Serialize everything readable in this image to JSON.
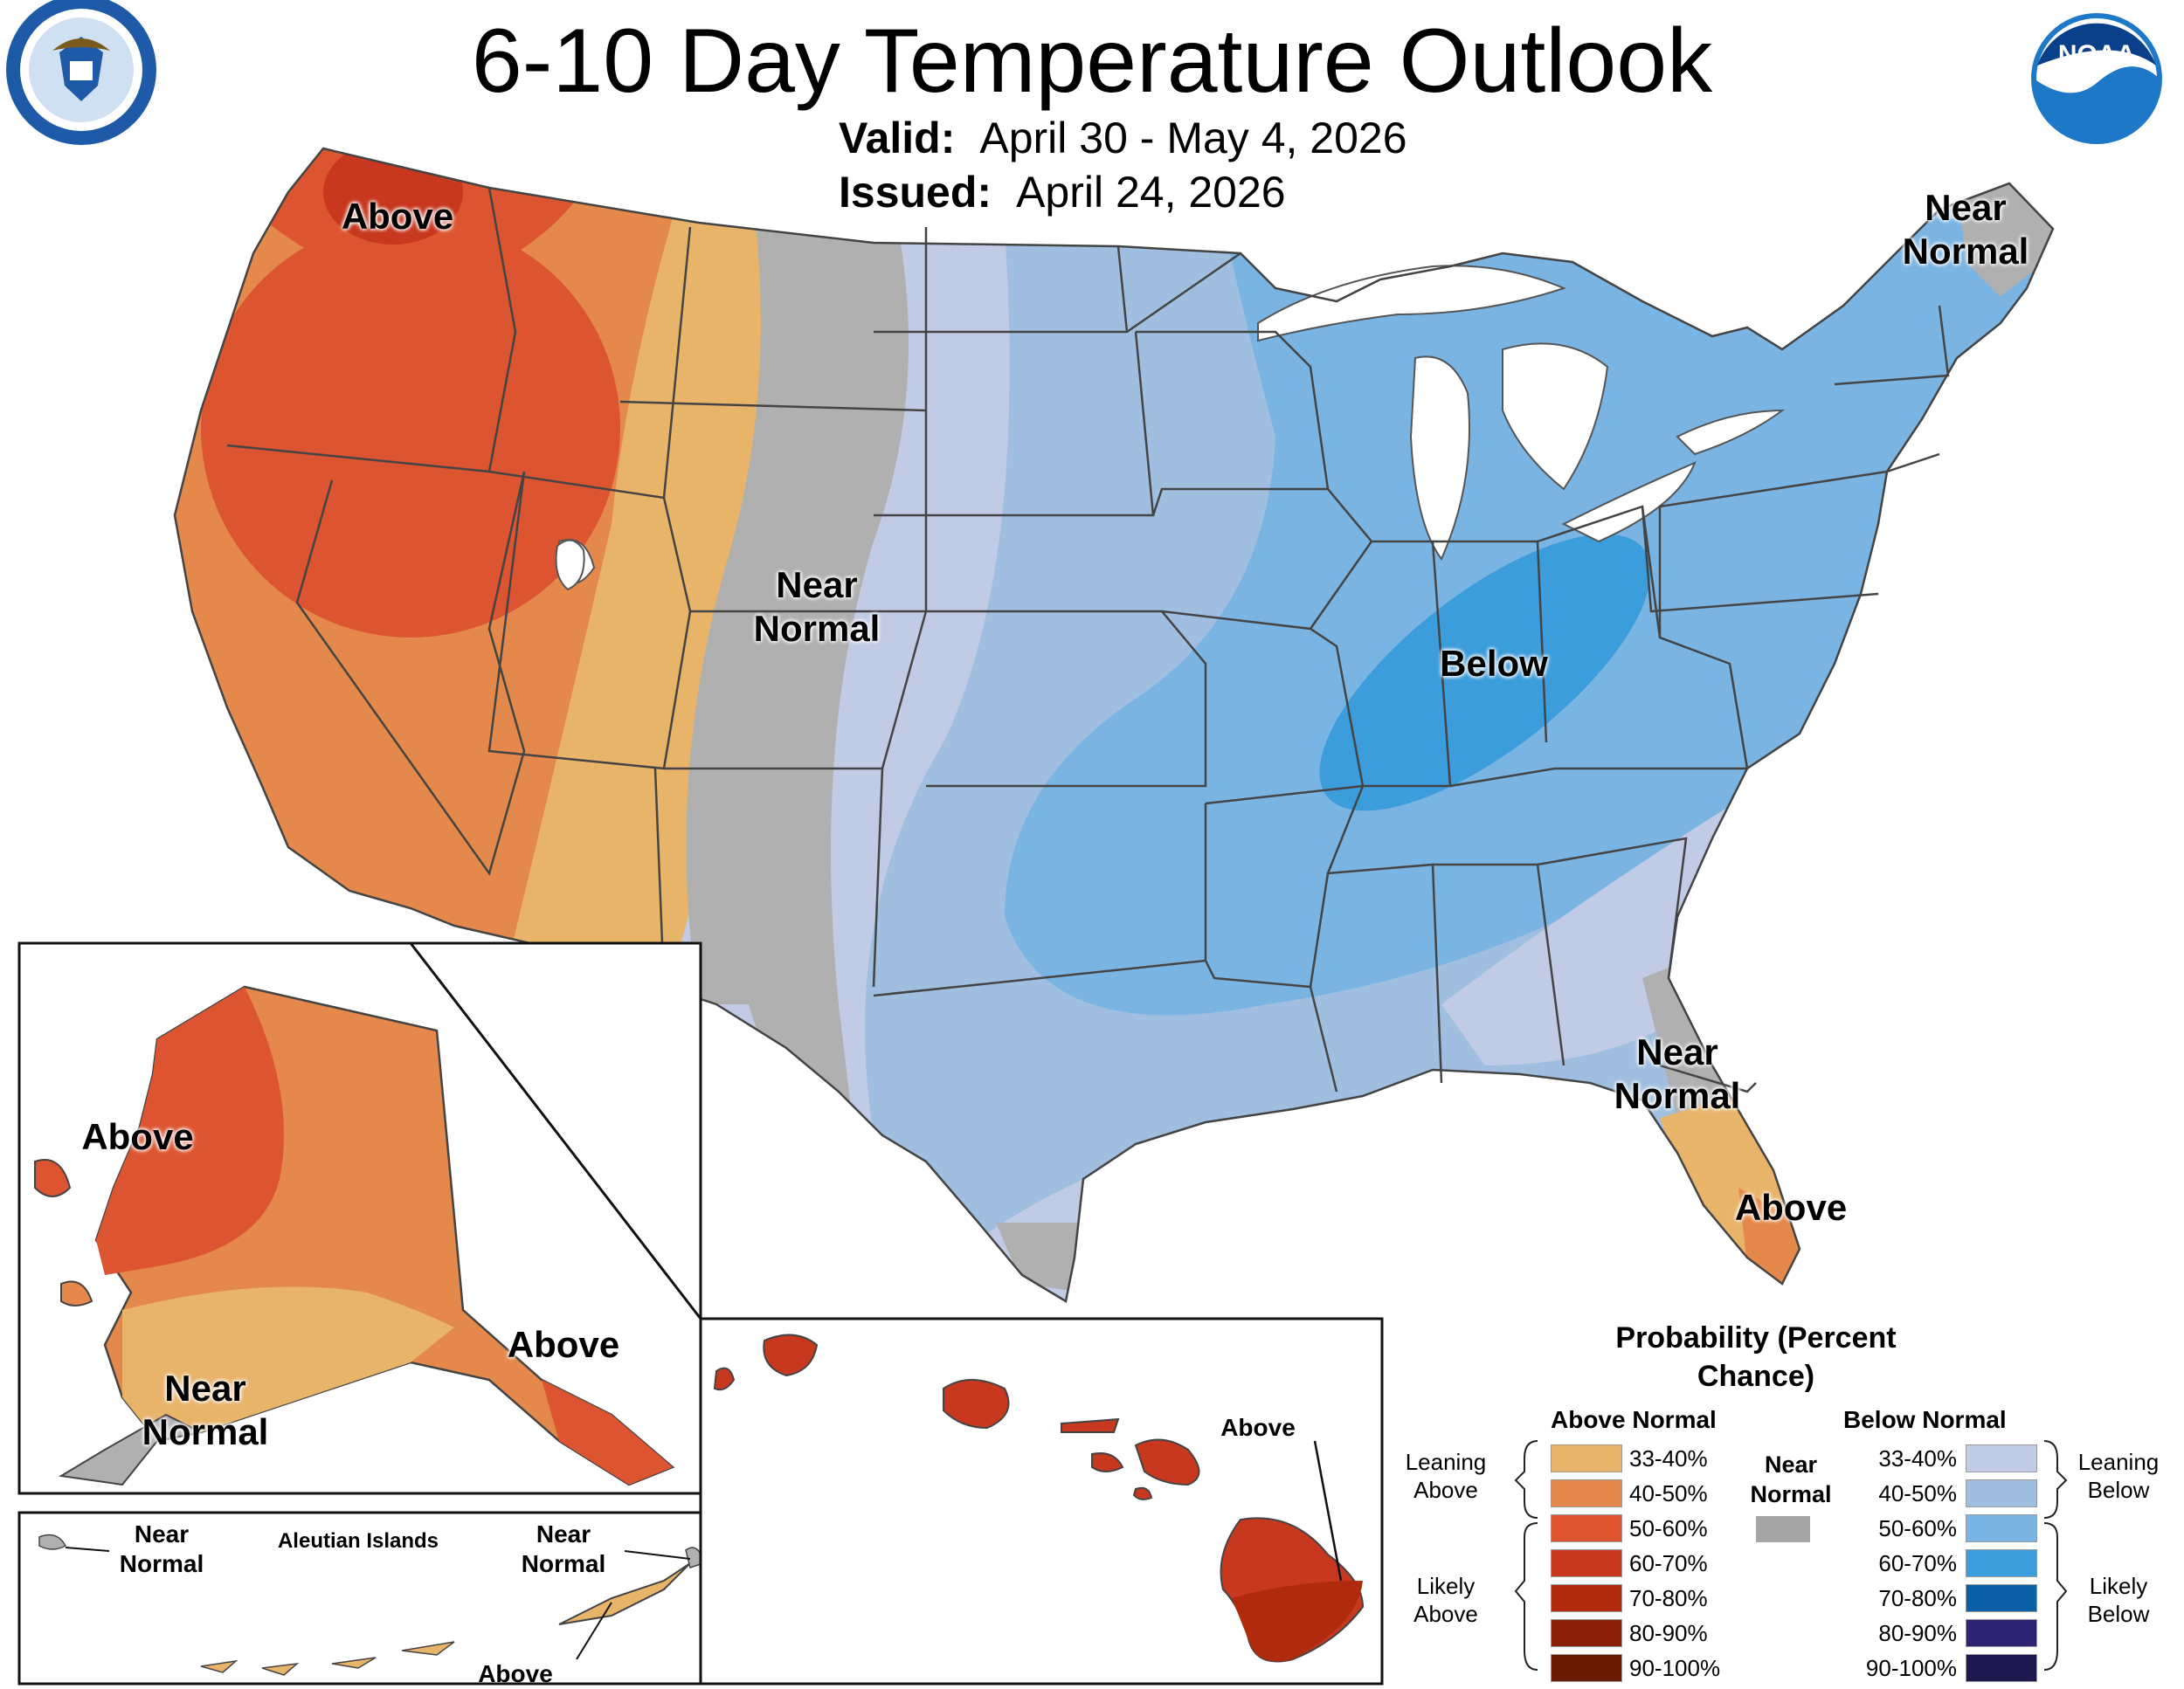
{
  "title": "6-10 Day Temperature Outlook",
  "valid": {
    "label": "Valid:",
    "value": "April 30 - May 4, 2026"
  },
  "issued": {
    "label": "Issued:",
    "value": "April 24, 2026"
  },
  "logos": {
    "left": "DEPARTMENT OF COMMERCE · UNITED STATES OF AMERICA",
    "right": "NOAA"
  },
  "map_labels": {
    "conus_above": "Above",
    "conus_near_normal": "Near Normal",
    "conus_below": "Below",
    "ne_near_normal": "Near Normal",
    "se_near_normal": "Near Normal",
    "fl_above": "Above",
    "ak_above_west": "Above",
    "ak_above_se": "Above",
    "ak_near_normal": "Near Normal",
    "aleutian_title": "Aleutian Islands",
    "aleutian_near_normal_left": "Near Normal",
    "aleutian_near_normal_right": "Near Normal",
    "aleutian_above": "Above",
    "hi_above": "Above"
  },
  "legend": {
    "title": "Probability (Percent Chance)",
    "above_header": "Above Normal",
    "below_header": "Below Normal",
    "near_header": "Near Normal",
    "leaning_above": "Leaning Above",
    "likely_above": "Likely Above",
    "leaning_below": "Leaning Below",
    "likely_below": "Likely Below",
    "near_color": "#a6a6a6",
    "above": [
      {
        "range": "33-40%",
        "color": "#e8b46a"
      },
      {
        "range": "40-50%",
        "color": "#e4894b"
      },
      {
        "range": "50-60%",
        "color": "#dd5530"
      },
      {
        "range": "60-70%",
        "color": "#c8381e"
      },
      {
        "range": "70-80%",
        "color": "#b02a0e"
      },
      {
        "range": "80-90%",
        "color": "#8b2008"
      },
      {
        "range": "90-100%",
        "color": "#6b1a02"
      }
    ],
    "below": [
      {
        "range": "33-40%",
        "color": "#c2cbe6"
      },
      {
        "range": "40-50%",
        "color": "#a0bfe0"
      },
      {
        "range": "50-60%",
        "color": "#7ab4e3"
      },
      {
        "range": "60-70%",
        "color": "#3c9ddc"
      },
      {
        "range": "70-80%",
        "color": "#0a5fa5"
      },
      {
        "range": "80-90%",
        "color": "#2c2371"
      },
      {
        "range": "90-100%",
        "color": "#1d1850"
      }
    ]
  }
}
